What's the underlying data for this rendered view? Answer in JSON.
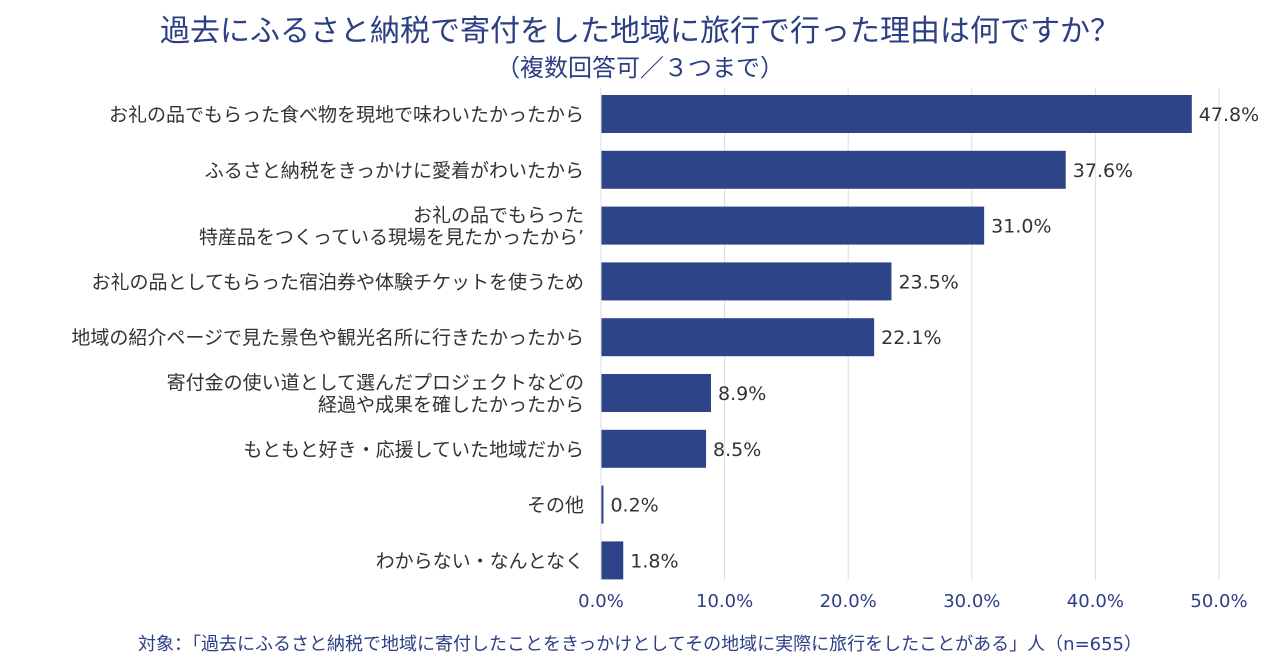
{
  "chart_data": {
    "type": "bar",
    "orientation": "horizontal",
    "title": "過去にふるさと納税で寄付をした地域に旅行で行った理由は何ですか？",
    "subtitle": "（複数回答可／３つまで）",
    "categories": [
      [
        "お礼の品でもらった食べ物を現地で味わいたかったから"
      ],
      [
        "ふるさと納税をきっかけに愛着がわいたから"
      ],
      [
        "お礼の品でもらった",
        "特産品をつくっている現場を見たかったから’"
      ],
      [
        "お礼の品としてもらった宿泊券や体験チケットを使うため"
      ],
      [
        "地域の紹介ページで見た景色や観光名所に行きたかったから"
      ],
      [
        "寄付金の使い道として選んだプロジェクトなどの",
        "経過や成果を確したかったから"
      ],
      [
        "もともと好き・応援していた地域だから"
      ],
      [
        "その他"
      ],
      [
        "わからない・なんとなく"
      ]
    ],
    "values": [
      47.8,
      37.6,
      31.0,
      23.5,
      22.1,
      8.9,
      8.5,
      0.2,
      1.8
    ],
    "value_labels": [
      "47.8%",
      "37.6%",
      "31.0%",
      "23.5%",
      "22.1%",
      "8.9%",
      "8.5%",
      "0.2%",
      "1.8%"
    ],
    "x_ticks": [
      "0.0%",
      "10.0%",
      "20.0%",
      "30.0%",
      "40.0%",
      "50.0%"
    ],
    "xlim": [
      0,
      50
    ],
    "grid": true,
    "bar_color": "#2e4489",
    "text_color": "#2c3e84",
    "label_color": "#333333",
    "grid_color": "#d9dde3"
  },
  "footnote": "対象：「過去にふるさと納税で地域に寄付したことをきっかけとしてその地域に実際に旅行をしたことがある」人（n=655）"
}
